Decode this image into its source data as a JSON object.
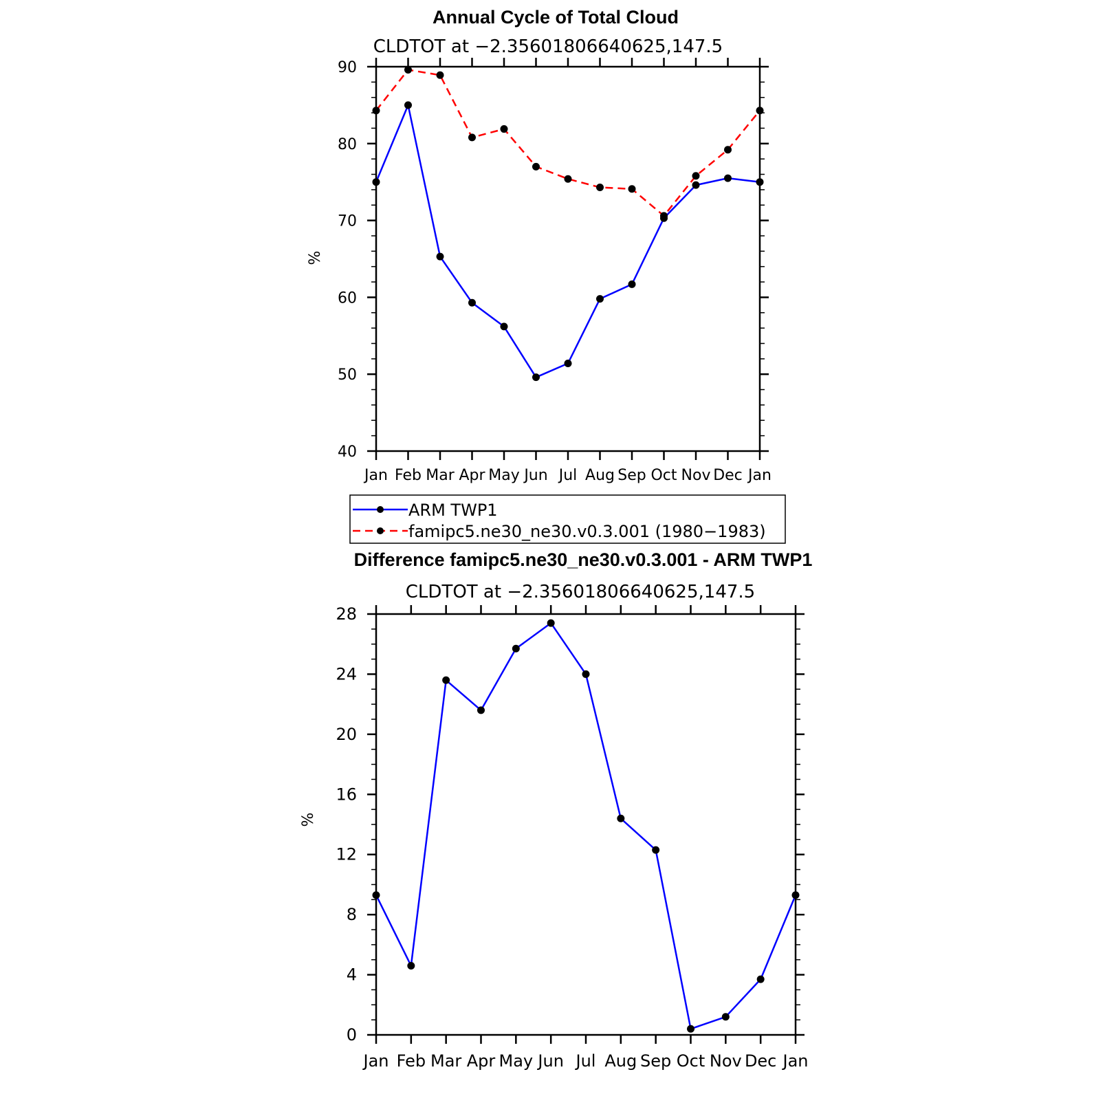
{
  "chart_data": [
    {
      "type": "line",
      "title": "Annual Cycle of Total Cloud",
      "subtitle": "CLDTOT at −2.35601806640625,147.5",
      "ylabel": "%",
      "xlabel": "",
      "categories": [
        "Jan",
        "Feb",
        "Mar",
        "Apr",
        "May",
        "Jun",
        "Jul",
        "Aug",
        "Sep",
        "Oct",
        "Nov",
        "Dec",
        "Jan"
      ],
      "ylim": [
        40,
        90
      ],
      "yticks": [
        "40",
        "50",
        "60",
        "70",
        "80",
        "90"
      ],
      "series": [
        {
          "name": "ARM TWP1",
          "color": "#0000ff",
          "style": "solid",
          "values": [
            75.0,
            85.0,
            65.3,
            59.3,
            56.2,
            49.6,
            51.4,
            59.8,
            61.7,
            70.3,
            74.6,
            75.5,
            75.0
          ]
        },
        {
          "name": "famipc5.ne30_ne30.v0.3.001 (1980−1983)",
          "color": "#ff0000",
          "style": "dashed",
          "values": [
            84.3,
            89.6,
            88.9,
            80.8,
            81.9,
            77.0,
            75.4,
            74.3,
            74.1,
            70.6,
            75.8,
            79.2,
            84.3
          ]
        }
      ],
      "legend": {
        "position": "below",
        "entries": [
          "ARM TWP1",
          "famipc5.ne30_ne30.v0.3.001 (1980−1983)"
        ]
      }
    },
    {
      "type": "line",
      "title": "Difference famipc5.ne30_ne30.v0.3.001 - ARM TWP1",
      "subtitle": "CLDTOT at −2.35601806640625,147.5",
      "ylabel": "%",
      "xlabel": "",
      "categories": [
        "Jan",
        "Feb",
        "Mar",
        "Apr",
        "May",
        "Jun",
        "Jul",
        "Aug",
        "Sep",
        "Oct",
        "Nov",
        "Dec",
        "Jan"
      ],
      "ylim": [
        0,
        28
      ],
      "yticks": [
        "0",
        "4",
        "8",
        "12",
        "16",
        "20",
        "24",
        "28"
      ],
      "series": [
        {
          "name": "Difference",
          "color": "#0000ff",
          "style": "solid",
          "values": [
            9.3,
            4.6,
            23.6,
            21.6,
            25.7,
            27.4,
            24.0,
            14.4,
            12.3,
            0.4,
            1.2,
            3.7,
            9.3
          ]
        }
      ]
    }
  ]
}
